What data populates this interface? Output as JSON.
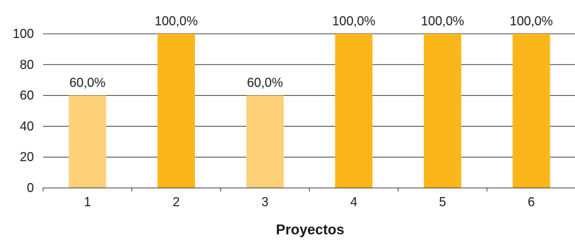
{
  "chart_data": {
    "type": "bar",
    "categories": [
      "1",
      "2",
      "3",
      "4",
      "5",
      "6"
    ],
    "values": [
      60,
      100,
      60,
      100,
      100,
      100
    ],
    "data_labels": [
      "60,0%",
      "100,0%",
      "60,0%",
      "100,0%",
      "100,0%",
      "100,0%"
    ],
    "title": "",
    "xlabel": "Proyectos",
    "ylabel": "",
    "ylim": [
      0,
      100
    ],
    "yticks": [
      "0",
      "20",
      "40",
      "60",
      "80",
      "100"
    ],
    "grid": true,
    "bar_colors": [
      "#fdd07a",
      "#fbb71a",
      "#fdd07a",
      "#fbb71a",
      "#fbb71a",
      "#fbb71a"
    ],
    "gridline_color": "#333333"
  }
}
